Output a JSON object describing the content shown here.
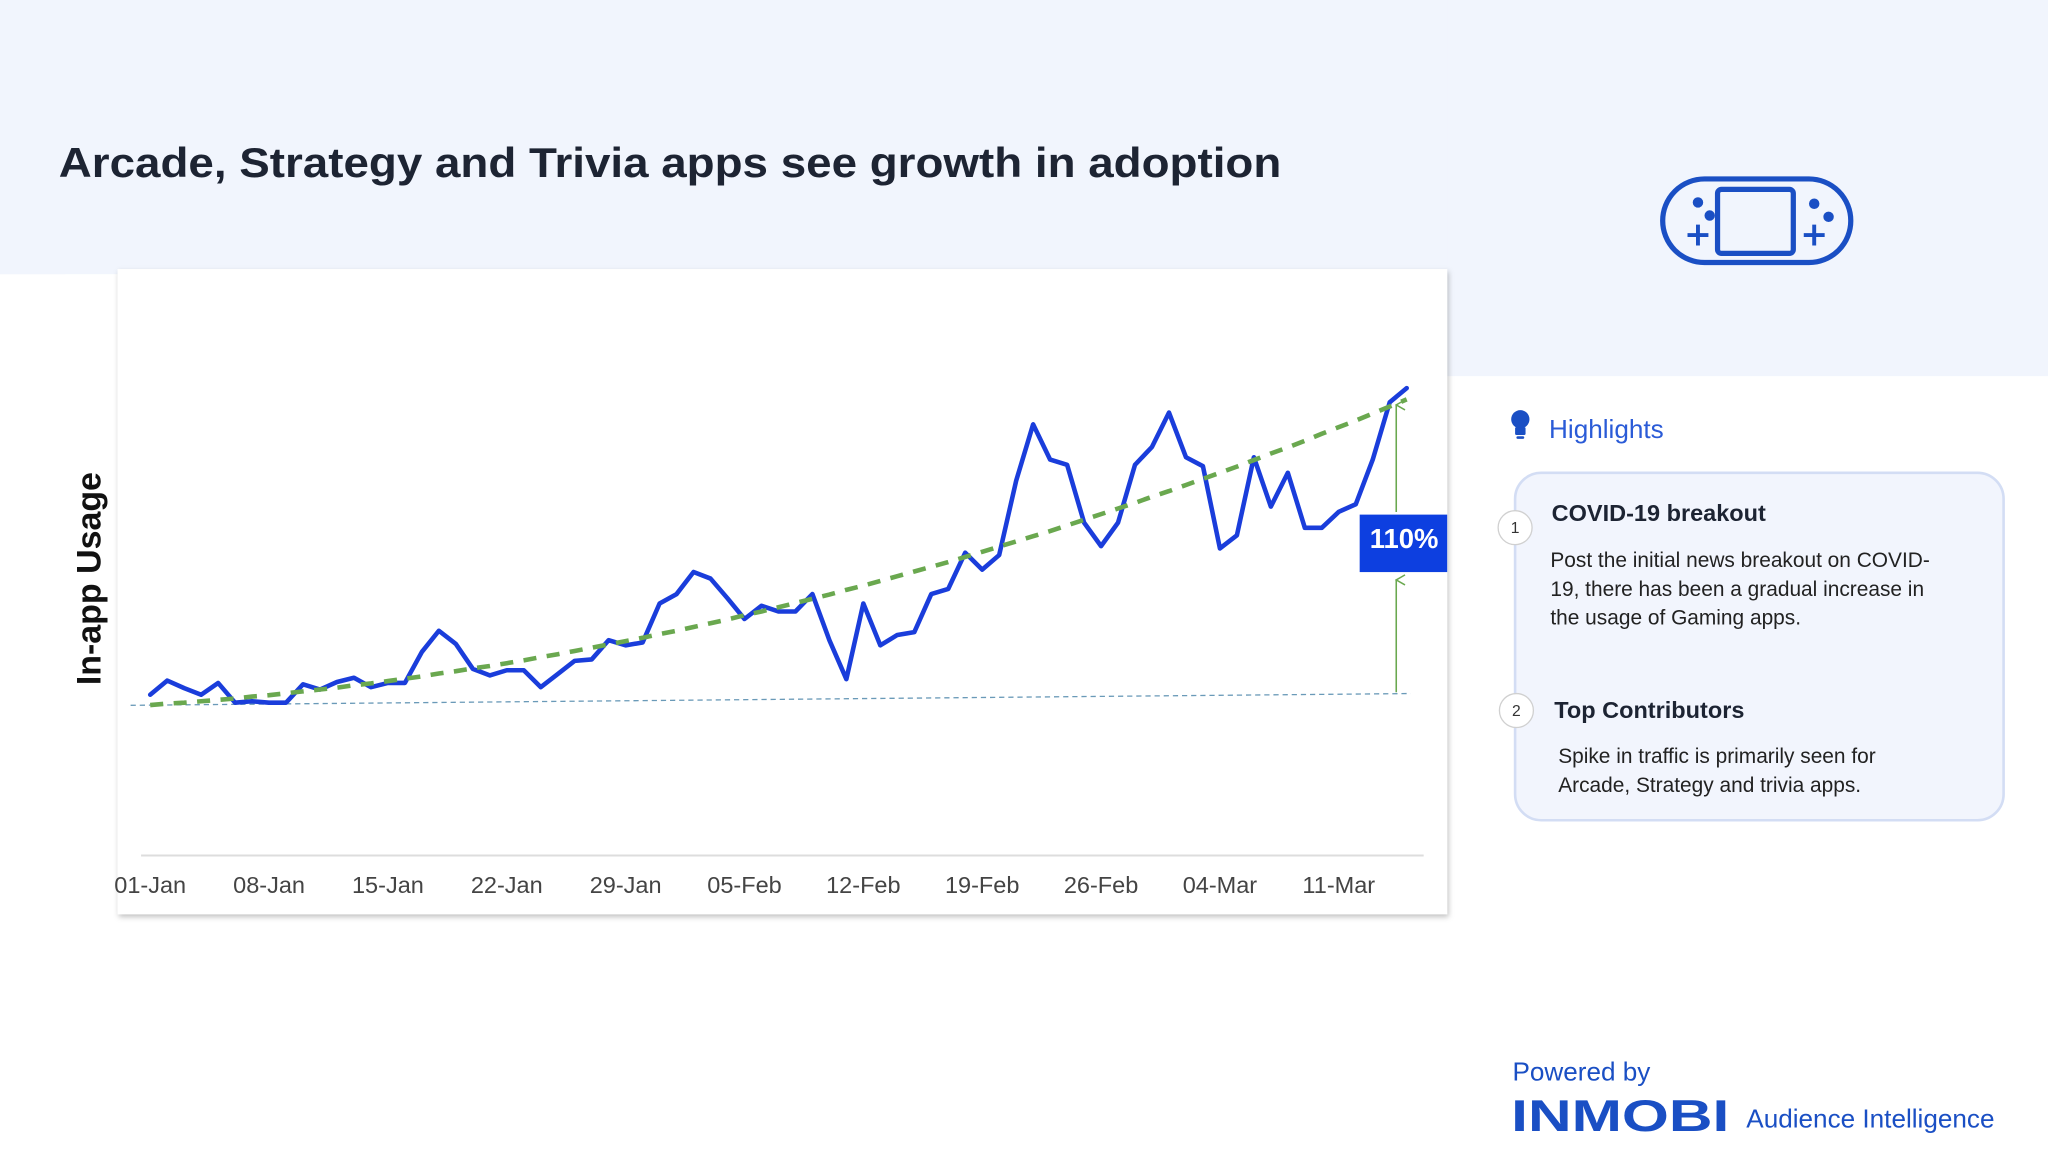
{
  "header": {
    "title": "Arcade, Strategy and Trivia apps see growth in adoption"
  },
  "chart_data": {
    "type": "line",
    "ylabel": "In-app Usage",
    "annotation": "110%",
    "categories": [
      "01-Jan",
      null,
      null,
      null,
      null,
      null,
      null,
      "08-Jan",
      null,
      null,
      null,
      null,
      null,
      null,
      "15-Jan",
      null,
      null,
      null,
      null,
      null,
      null,
      "22-Jan",
      null,
      null,
      null,
      null,
      null,
      null,
      "29-Jan",
      null,
      null,
      null,
      null,
      null,
      null,
      "05-Feb",
      null,
      null,
      null,
      null,
      null,
      null,
      "12-Feb",
      null,
      null,
      null,
      null,
      null,
      null,
      "19-Feb",
      null,
      null,
      null,
      null,
      null,
      null,
      "26-Feb",
      null,
      null,
      null,
      null,
      null,
      null,
      "04-Mar",
      null,
      null,
      null,
      null,
      null,
      null,
      "11-Mar",
      null,
      null,
      null,
      null
    ],
    "ylim": [
      0,
      100
    ],
    "series": [
      {
        "color": "#1a3ddb",
        "style": "solid",
        "values": [
          34.2,
          37.2,
          35.6,
          34.2,
          36.7,
          32.5,
          32.8,
          32.5,
          32.5,
          36.4,
          35.3,
          36.9,
          37.8,
          35.8,
          36.7,
          36.7,
          43.3,
          47.8,
          45.0,
          39.7,
          38.3,
          39.4,
          39.4,
          35.8,
          38.6,
          41.4,
          41.7,
          45.8,
          44.7,
          45.3,
          53.6,
          55.6,
          60.3,
          58.9,
          54.7,
          50.3,
          53.1,
          51.9,
          51.9,
          55.6,
          45.8,
          37.5,
          53.6,
          44.7,
          46.9,
          47.5,
          55.6,
          56.7,
          64.4,
          60.8,
          63.9,
          79.7,
          91.7,
          84.2,
          83.1,
          70.8,
          65.8,
          70.8,
          83.1,
          86.9,
          94.2,
          84.7,
          82.8,
          65.3,
          68.1,
          84.7,
          74.2,
          81.4,
          69.7,
          69.7,
          73.1,
          74.7,
          84.2,
          96.4,
          99.4
        ]
      },
      {
        "color": "#6aa84f",
        "style": "dashed",
        "values": [
          32.0,
          32.3,
          32.5,
          32.8,
          33.1,
          33.4,
          33.8,
          34.1,
          34.5,
          34.9,
          35.3,
          35.7,
          36.2,
          36.6,
          37.1,
          37.6,
          38.1,
          38.7,
          39.2,
          39.8,
          40.3,
          40.9,
          41.5,
          42.2,
          42.8,
          43.5,
          44.2,
          44.9,
          45.6,
          46.3,
          47.1,
          47.8,
          48.6,
          49.4,
          50.2,
          51.1,
          51.9,
          52.8,
          53.7,
          54.6,
          55.5,
          56.5,
          57.4,
          58.4,
          59.4,
          60.4,
          61.4,
          62.4,
          63.5,
          64.6,
          65.7,
          66.8,
          67.9,
          69.0,
          70.2,
          71.4,
          72.6,
          73.8,
          75.0,
          76.3,
          77.5,
          78.8,
          80.1,
          81.4,
          82.7,
          84.1,
          85.5,
          86.8,
          88.2,
          89.7,
          91.1,
          92.5,
          94.0,
          95.5,
          97.0
        ]
      }
    ]
  },
  "highlights": {
    "title": "Highlights",
    "items": [
      {
        "number": "1",
        "heading": "COVID-19 breakout",
        "lines": [
          "Post the initial news breakout on COVID-",
          "19, there has been a gradual increase in",
          "the usage of Gaming apps."
        ]
      },
      {
        "number": "2",
        "heading": "Top Contributors",
        "lines": [
          "Spike in traffic is primarily seen for",
          "Arcade, Strategy and trivia apps."
        ]
      }
    ]
  },
  "footer": {
    "powered_by": "Powered by",
    "brand": "INMOBI",
    "product": "Audience Intelligence"
  }
}
